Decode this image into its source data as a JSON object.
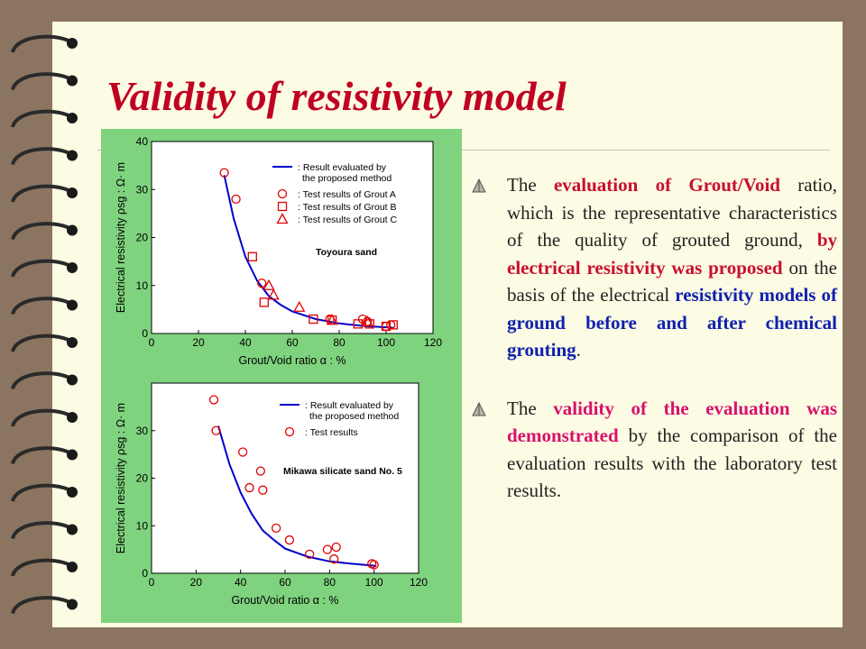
{
  "title": "Validity of resistivity model",
  "bullets": [
    {
      "parts": [
        {
          "text": "The ",
          "style": "plain"
        },
        {
          "text": "evaluation of Grout/Void",
          "style": "red"
        },
        {
          "text": " ratio, which is the representative characteristics of the quality of grouted ground, ",
          "style": "plain"
        },
        {
          "text": "by electrical resistivity was proposed",
          "style": "red"
        },
        {
          "text": " on the basis of the electrical ",
          "style": "plain"
        },
        {
          "text": "resistivity models of ground before and after chemical grouting",
          "style": "blue"
        },
        {
          "text": ".",
          "style": "plain"
        }
      ]
    },
    {
      "parts": [
        {
          "text": "The ",
          "style": "plain"
        },
        {
          "text": "validity of the evaluation was demonstrated",
          "style": "pink"
        },
        {
          "text": " by the comparison of the evaluation results with the laboratory test results.",
          "style": "plain"
        }
      ]
    }
  ],
  "colors": {
    "accent": "#c00020",
    "panel": "#7fd37f",
    "curve": "#0000cc",
    "marker": "#e00000"
  },
  "chart_data": [
    {
      "type": "scatter",
      "xlabel": "Grout/Void ratio  α : %",
      "ylabel": "Electrical resistivity  ρsg : Ω· m",
      "xlim": [
        0,
        120
      ],
      "ylim": [
        0,
        40
      ],
      "xticks": [
        0,
        20,
        40,
        60,
        80,
        100,
        120
      ],
      "yticks": [
        0,
        10,
        20,
        30,
        40
      ],
      "annotation": "Toyoura sand",
      "legend_position": "top-right",
      "legend": [
        {
          "symbol": "line",
          "text": ": Result evaluated by\nthe proposed method"
        },
        {
          "symbol": "circle",
          "text": ": Test results of Grout A"
        },
        {
          "symbol": "square",
          "text": ": Test results of Grout B"
        },
        {
          "symbol": "triangle",
          "text": ": Test results of Grout C"
        }
      ],
      "curve": {
        "x": [
          31,
          35,
          40,
          45,
          50,
          55,
          60,
          70,
          80,
          90,
          100,
          103
        ],
        "y": [
          33,
          24,
          16,
          11,
          7.8,
          6,
          4.6,
          3,
          2.1,
          1.6,
          1.3,
          1.2
        ]
      },
      "series": [
        {
          "marker": "circle",
          "points": [
            [
              31,
              33.5
            ],
            [
              36,
              28
            ],
            [
              47,
              10.5
            ],
            [
              76,
              3
            ],
            [
              90,
              3
            ],
            [
              92,
              2.5
            ],
            [
              100,
              1.5
            ],
            [
              102,
              1.8
            ]
          ]
        },
        {
          "marker": "square",
          "points": [
            [
              43,
              16
            ],
            [
              48,
              6.5
            ],
            [
              69,
              3
            ],
            [
              77,
              2.8
            ],
            [
              88,
              2
            ],
            [
              93,
              2
            ],
            [
              100,
              1.5
            ],
            [
              103,
              1.8
            ]
          ]
        },
        {
          "marker": "triangle",
          "points": [
            [
              50,
              10
            ],
            [
              52,
              8
            ],
            [
              63,
              5.5
            ],
            [
              77,
              2.8
            ],
            [
              92,
              2.5
            ]
          ]
        }
      ]
    },
    {
      "type": "scatter",
      "xlabel": "Grout/Void ratio  α : %",
      "ylabel": "Electrical resistivity  ρsg : Ω· m",
      "xlim": [
        0,
        120
      ],
      "ylim": [
        0,
        40
      ],
      "xticks": [
        0,
        20,
        40,
        60,
        80,
        100,
        120
      ],
      "yticks": [
        0,
        10,
        20,
        30
      ],
      "annotation": "Mikawa silicate sand No. 5",
      "legend_position": "top-right",
      "legend": [
        {
          "symbol": "line",
          "text": ": Result evaluated by\nthe proposed method"
        },
        {
          "symbol": "circle",
          "text": ": Test results"
        }
      ],
      "curve": {
        "x": [
          30,
          35,
          40,
          45,
          50,
          55,
          60,
          70,
          80,
          90,
          100,
          101
        ],
        "y": [
          31,
          23,
          17,
          12.5,
          9,
          7,
          5.2,
          3.5,
          2.5,
          2,
          1.6,
          1.5
        ]
      },
      "series": [
        {
          "marker": "circle",
          "points": [
            [
              28,
              36.5
            ],
            [
              29,
              30
            ],
            [
              41,
              25.5
            ],
            [
              44,
              18
            ],
            [
              49,
              21.5
            ],
            [
              50,
              17.5
            ],
            [
              56,
              9.5
            ],
            [
              62,
              7
            ],
            [
              71,
              4
            ],
            [
              79,
              5
            ],
            [
              82,
              3
            ],
            [
              83,
              5.5
            ],
            [
              99,
              2
            ],
            [
              100,
              1.8
            ]
          ]
        }
      ]
    }
  ]
}
